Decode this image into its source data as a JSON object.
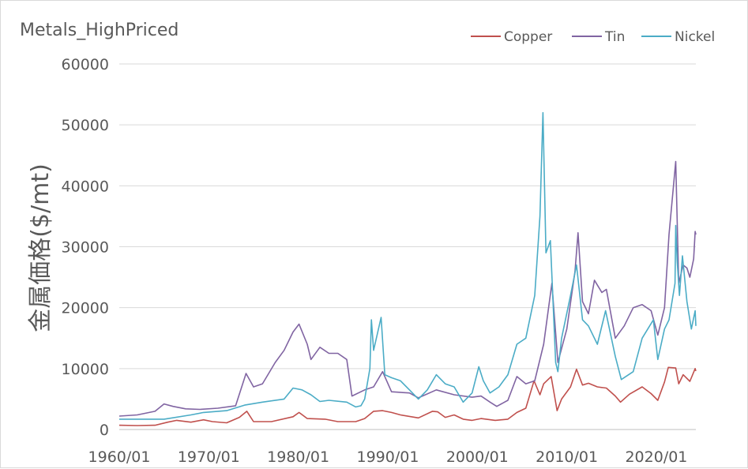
{
  "chart_data": {
    "type": "line",
    "title": "Metals_HighPriced",
    "ylabel": "金属価格($/mt)",
    "xlabel": "",
    "x_range": [
      "1960-01",
      "2024-06"
    ],
    "ylim": [
      0,
      60000
    ],
    "yticks": [
      0,
      10000,
      20000,
      30000,
      40000,
      50000,
      60000
    ],
    "xticks": [
      "1960/01",
      "1970/01",
      "1980/01",
      "1990/01",
      "2000/01",
      "2010/01",
      "2020/01"
    ],
    "grid": "horizontal",
    "legend": "top-right",
    "series": [
      {
        "name": "Copper",
        "color": "#c0504d",
        "points": [
          [
            "1960-01",
            700
          ],
          [
            "1962-01",
            650
          ],
          [
            "1964-01",
            700
          ],
          [
            "1965-06",
            1200
          ],
          [
            "1966-06",
            1500
          ],
          [
            "1968-01",
            1200
          ],
          [
            "1969-06",
            1600
          ],
          [
            "1970-06",
            1300
          ],
          [
            "1972-01",
            1100
          ],
          [
            "1973-06",
            2000
          ],
          [
            "1974-04",
            3000
          ],
          [
            "1975-01",
            1300
          ],
          [
            "1977-01",
            1300
          ],
          [
            "1979-06",
            2100
          ],
          [
            "1980-02",
            2800
          ],
          [
            "1981-01",
            1800
          ],
          [
            "1983-01",
            1700
          ],
          [
            "1984-06",
            1300
          ],
          [
            "1986-06",
            1300
          ],
          [
            "1987-06",
            1800
          ],
          [
            "1988-06",
            3000
          ],
          [
            "1989-06",
            3100
          ],
          [
            "1990-06",
            2800
          ],
          [
            "1991-06",
            2400
          ],
          [
            "1993-06",
            1900
          ],
          [
            "1995-01",
            3000
          ],
          [
            "1995-08",
            2900
          ],
          [
            "1996-06",
            2000
          ],
          [
            "1997-06",
            2400
          ],
          [
            "1998-06",
            1700
          ],
          [
            "1999-06",
            1500
          ],
          [
            "2000-06",
            1800
          ],
          [
            "2002-01",
            1500
          ],
          [
            "2003-06",
            1700
          ],
          [
            "2004-06",
            2800
          ],
          [
            "2005-06",
            3500
          ],
          [
            "2006-05",
            8000
          ],
          [
            "2007-01",
            5700
          ],
          [
            "2007-06",
            7500
          ],
          [
            "2008-04",
            8700
          ],
          [
            "2008-12",
            3100
          ],
          [
            "2009-06",
            5000
          ],
          [
            "2010-06",
            7000
          ],
          [
            "2011-02",
            9900
          ],
          [
            "2011-10",
            7300
          ],
          [
            "2012-06",
            7600
          ],
          [
            "2013-06",
            7000
          ],
          [
            "2014-06",
            6800
          ],
          [
            "2015-06",
            5500
          ],
          [
            "2016-01",
            4500
          ],
          [
            "2017-01",
            5800
          ],
          [
            "2018-06",
            7000
          ],
          [
            "2019-06",
            5900
          ],
          [
            "2020-03",
            4800
          ],
          [
            "2020-12",
            7800
          ],
          [
            "2021-05",
            10200
          ],
          [
            "2022-03",
            10100
          ],
          [
            "2022-07",
            7500
          ],
          [
            "2023-01",
            9000
          ],
          [
            "2023-10",
            7900
          ],
          [
            "2024-05",
            10000
          ],
          [
            "2024-06",
            9600
          ]
        ]
      },
      {
        "name": "Tin",
        "color": "#8064a2",
        "points": [
          [
            "1960-01",
            2200
          ],
          [
            "1962-01",
            2400
          ],
          [
            "1964-01",
            3000
          ],
          [
            "1965-01",
            4200
          ],
          [
            "1966-01",
            3800
          ],
          [
            "1967-06",
            3400
          ],
          [
            "1969-01",
            3300
          ],
          [
            "1971-01",
            3500
          ],
          [
            "1973-01",
            3900
          ],
          [
            "1974-03",
            9200
          ],
          [
            "1975-01",
            7000
          ],
          [
            "1976-01",
            7500
          ],
          [
            "1977-06",
            11000
          ],
          [
            "1978-06",
            13000
          ],
          [
            "1979-06",
            16000
          ],
          [
            "1980-02",
            17300
          ],
          [
            "1981-01",
            14000
          ],
          [
            "1981-06",
            11500
          ],
          [
            "1982-06",
            13500
          ],
          [
            "1983-06",
            12500
          ],
          [
            "1984-06",
            12500
          ],
          [
            "1985-06",
            11500
          ],
          [
            "1986-01",
            5500
          ],
          [
            "1987-06",
            6500
          ],
          [
            "1988-06",
            7000
          ],
          [
            "1989-06",
            9500
          ],
          [
            "1990-06",
            6200
          ],
          [
            "1992-06",
            6000
          ],
          [
            "1993-06",
            5200
          ],
          [
            "1995-06",
            6500
          ],
          [
            "1997-06",
            5700
          ],
          [
            "1999-06",
            5300
          ],
          [
            "2000-06",
            5500
          ],
          [
            "2001-06",
            4500
          ],
          [
            "2002-03",
            3800
          ],
          [
            "2003-06",
            4800
          ],
          [
            "2004-06",
            8700
          ],
          [
            "2005-06",
            7500
          ],
          [
            "2006-06",
            8000
          ],
          [
            "2007-06",
            14000
          ],
          [
            "2008-05",
            24000
          ],
          [
            "2009-01",
            11000
          ],
          [
            "2010-01",
            16500
          ],
          [
            "2010-12",
            26000
          ],
          [
            "2011-04",
            32300
          ],
          [
            "2011-10",
            21000
          ],
          [
            "2012-06",
            19000
          ],
          [
            "2013-02",
            24500
          ],
          [
            "2013-12",
            22500
          ],
          [
            "2014-06",
            23000
          ],
          [
            "2015-06",
            15000
          ],
          [
            "2016-06",
            17000
          ],
          [
            "2017-06",
            20000
          ],
          [
            "2018-06",
            20500
          ],
          [
            "2019-06",
            19500
          ],
          [
            "2020-03",
            15500
          ],
          [
            "2020-12",
            20000
          ],
          [
            "2021-06",
            32000
          ],
          [
            "2022-03",
            44000
          ],
          [
            "2022-07",
            24000
          ],
          [
            "2023-01",
            27000
          ],
          [
            "2023-06",
            26500
          ],
          [
            "2023-10",
            25000
          ],
          [
            "2024-03",
            28000
          ],
          [
            "2024-05",
            32500
          ],
          [
            "2024-06",
            32000
          ]
        ]
      },
      {
        "name": "Nickel",
        "color": "#4bacc6",
        "points": [
          [
            "1960-01",
            1700
          ],
          [
            "1965-01",
            1700
          ],
          [
            "1968-01",
            2400
          ],
          [
            "1969-06",
            2800
          ],
          [
            "1972-01",
            3100
          ],
          [
            "1974-01",
            4000
          ],
          [
            "1976-01",
            4500
          ],
          [
            "1978-06",
            5000
          ],
          [
            "1979-06",
            6800
          ],
          [
            "1980-06",
            6500
          ],
          [
            "1981-06",
            5700
          ],
          [
            "1982-06",
            4600
          ],
          [
            "1983-06",
            4800
          ],
          [
            "1985-06",
            4500
          ],
          [
            "1986-06",
            3700
          ],
          [
            "1987-01",
            3900
          ],
          [
            "1987-06",
            5000
          ],
          [
            "1988-01",
            10000
          ],
          [
            "1988-03",
            18000
          ],
          [
            "1988-06",
            13000
          ],
          [
            "1989-04",
            18400
          ],
          [
            "1989-09",
            9000
          ],
          [
            "1990-06",
            8500
          ],
          [
            "1991-06",
            8000
          ],
          [
            "1992-06",
            6500
          ],
          [
            "1993-06",
            5000
          ],
          [
            "1994-06",
            6500
          ],
          [
            "1995-06",
            9000
          ],
          [
            "1996-06",
            7500
          ],
          [
            "1997-06",
            7000
          ],
          [
            "1998-06",
            4500
          ],
          [
            "1999-06",
            6000
          ],
          [
            "2000-03",
            10300
          ],
          [
            "2000-09",
            8000
          ],
          [
            "2001-06",
            6000
          ],
          [
            "2002-06",
            7000
          ],
          [
            "2003-06",
            9000
          ],
          [
            "2004-06",
            14000
          ],
          [
            "2005-06",
            15000
          ],
          [
            "2006-06",
            22000
          ],
          [
            "2007-01",
            35000
          ],
          [
            "2007-05",
            52000
          ],
          [
            "2007-09",
            29000
          ],
          [
            "2008-03",
            31000
          ],
          [
            "2008-10",
            11000
          ],
          [
            "2009-01",
            9500
          ],
          [
            "2009-06",
            15000
          ],
          [
            "2010-06",
            22000
          ],
          [
            "2011-02",
            27000
          ],
          [
            "2011-10",
            18000
          ],
          [
            "2012-06",
            17000
          ],
          [
            "2013-06",
            14000
          ],
          [
            "2014-05",
            19500
          ],
          [
            "2015-06",
            12000
          ],
          [
            "2016-02",
            8200
          ],
          [
            "2017-06",
            9500
          ],
          [
            "2018-06",
            15000
          ],
          [
            "2019-09",
            18000
          ],
          [
            "2020-03",
            11500
          ],
          [
            "2020-12",
            16500
          ],
          [
            "2021-06",
            18000
          ],
          [
            "2022-02",
            24000
          ],
          [
            "2022-03",
            33500
          ],
          [
            "2022-05",
            27500
          ],
          [
            "2022-08",
            22000
          ],
          [
            "2022-12",
            28500
          ],
          [
            "2023-06",
            21000
          ],
          [
            "2023-12",
            16500
          ],
          [
            "2024-05",
            19500
          ],
          [
            "2024-06",
            17000
          ]
        ]
      }
    ]
  }
}
